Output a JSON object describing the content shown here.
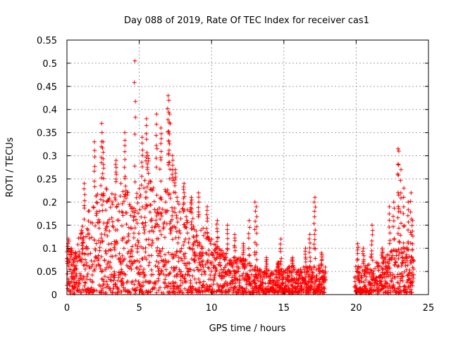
{
  "chart_data": {
    "type": "scatter",
    "title": "Day 088 of 2019, Rate Of TEC Index for receiver cas1",
    "xlabel": "GPS time / hours",
    "ylabel": "ROTI / TECUs",
    "xlim": [
      0,
      25
    ],
    "ylim": [
      0,
      0.55
    ],
    "xticks": [
      0,
      5,
      10,
      15,
      20,
      25
    ],
    "yticks": [
      0,
      0.05,
      0.1,
      0.15,
      0.2,
      0.25,
      0.3,
      0.35,
      0.4,
      0.45,
      0.5,
      0.55
    ],
    "xtick_labels": [
      "0",
      "5",
      "10",
      "15",
      "20",
      "25"
    ],
    "ytick_labels": [
      "0",
      "0.05",
      "0.1",
      "0.15",
      "0.2",
      "0.25",
      "0.3",
      "0.35",
      "0.4",
      "0.45",
      "0.5",
      "0.55"
    ],
    "grid": true,
    "marker": "+",
    "color": "#ff0000",
    "gap_hours": [
      17.9,
      19.9
    ],
    "series": [
      {
        "name": "ROTI",
        "points": [
          [
            0.1,
            0.12
          ],
          [
            0.3,
            0.1
          ],
          [
            0.6,
            0.08
          ],
          [
            1.2,
            0.24
          ],
          [
            1.9,
            0.33
          ],
          [
            2.4,
            0.37
          ],
          [
            2.5,
            0.33
          ],
          [
            3.4,
            0.29
          ],
          [
            4.0,
            0.35
          ],
          [
            4.7,
            0.505
          ],
          [
            5.2,
            0.34
          ],
          [
            5.5,
            0.38
          ],
          [
            5.6,
            0.3
          ],
          [
            6.2,
            0.39
          ],
          [
            6.5,
            0.36
          ],
          [
            7.0,
            0.43
          ],
          [
            7.05,
            0.42
          ],
          [
            7.1,
            0.39
          ],
          [
            7.3,
            0.3
          ],
          [
            7.5,
            0.27
          ],
          [
            8.1,
            0.24
          ],
          [
            8.6,
            0.21
          ],
          [
            9.1,
            0.22
          ],
          [
            9.7,
            0.19
          ],
          [
            10.4,
            0.16
          ],
          [
            11.1,
            0.15
          ],
          [
            11.6,
            0.13
          ],
          [
            12.2,
            0.11
          ],
          [
            12.6,
            0.16
          ],
          [
            13.0,
            0.2
          ],
          [
            13.1,
            0.19
          ],
          [
            13.8,
            0.08
          ],
          [
            14.6,
            0.07
          ],
          [
            14.8,
            0.12
          ],
          [
            15.6,
            0.08
          ],
          [
            16.0,
            0.05
          ],
          [
            16.5,
            0.1
          ],
          [
            16.8,
            0.13
          ],
          [
            17.1,
            0.2
          ],
          [
            17.15,
            0.21
          ],
          [
            17.6,
            0.09
          ],
          [
            20.1,
            0.11
          ],
          [
            20.5,
            0.1
          ],
          [
            21.1,
            0.15
          ],
          [
            21.8,
            0.1
          ],
          [
            22.3,
            0.19
          ],
          [
            22.6,
            0.2
          ],
          [
            22.9,
            0.315
          ],
          [
            22.95,
            0.31
          ],
          [
            23.1,
            0.27
          ],
          [
            23.3,
            0.23
          ],
          [
            23.6,
            0.2
          ],
          [
            23.8,
            0.22
          ],
          [
            23.9,
            0.16
          ]
        ],
        "envelope": [
          [
            0.0,
            0.09
          ],
          [
            0.5,
            0.08
          ],
          [
            1.0,
            0.15
          ],
          [
            1.5,
            0.18
          ],
          [
            2.0,
            0.22
          ],
          [
            2.5,
            0.25
          ],
          [
            3.0,
            0.22
          ],
          [
            3.5,
            0.24
          ],
          [
            4.0,
            0.25
          ],
          [
            4.5,
            0.2
          ],
          [
            5.0,
            0.24
          ],
          [
            5.5,
            0.27
          ],
          [
            6.0,
            0.23
          ],
          [
            6.5,
            0.28
          ],
          [
            7.0,
            0.26
          ],
          [
            7.5,
            0.22
          ],
          [
            8.0,
            0.2
          ],
          [
            8.5,
            0.18
          ],
          [
            9.0,
            0.16
          ],
          [
            9.5,
            0.14
          ],
          [
            10.0,
            0.12
          ],
          [
            10.5,
            0.1
          ],
          [
            11.0,
            0.09
          ],
          [
            11.5,
            0.08
          ],
          [
            12.0,
            0.08
          ],
          [
            12.5,
            0.07
          ],
          [
            13.0,
            0.06
          ],
          [
            13.5,
            0.05
          ],
          [
            14.0,
            0.05
          ],
          [
            14.5,
            0.06
          ],
          [
            15.0,
            0.05
          ],
          [
            15.5,
            0.06
          ],
          [
            16.0,
            0.05
          ],
          [
            16.5,
            0.06
          ],
          [
            17.0,
            0.06
          ],
          [
            17.5,
            0.06
          ],
          [
            17.9,
            0.06
          ],
          [
            19.9,
            0.06
          ],
          [
            20.5,
            0.06
          ],
          [
            21.0,
            0.08
          ],
          [
            21.5,
            0.07
          ],
          [
            22.0,
            0.08
          ],
          [
            22.5,
            0.1
          ],
          [
            23.0,
            0.12
          ],
          [
            23.5,
            0.1
          ],
          [
            24.0,
            0.08
          ]
        ]
      }
    ]
  }
}
